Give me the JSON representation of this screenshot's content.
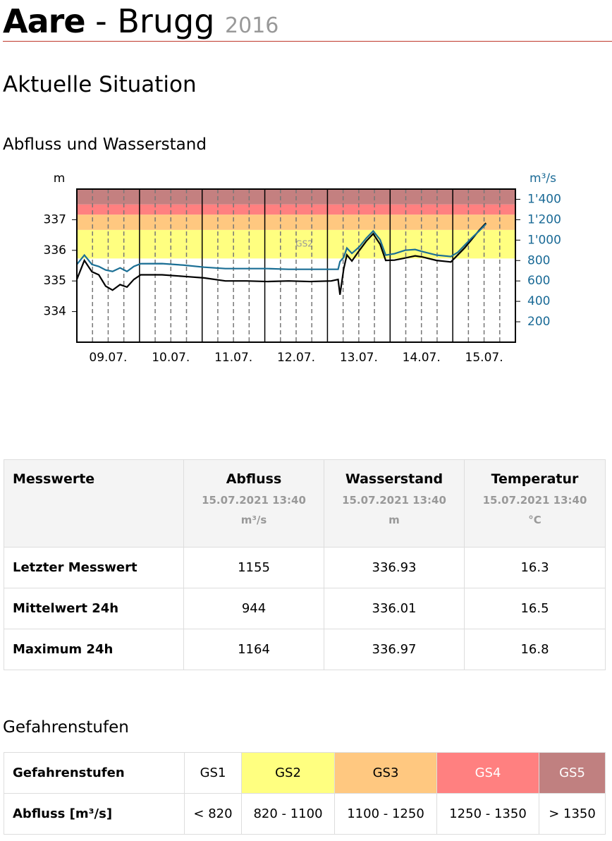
{
  "header": {
    "river": "Aare",
    "place": "- Brugg",
    "year": "2016"
  },
  "section_title": "Aktuelle Situation",
  "chart_heading": "Abfluss und Wasserstand",
  "chart_data": {
    "type": "line",
    "ylabel": "m",
    "y2label": "m³/s",
    "y2color": "#1a6a96",
    "categories": [
      "09.07.",
      "10.07.",
      "11.07.",
      "12.07.",
      "13.07.",
      "14.07.",
      "15.07."
    ],
    "xlim": [
      0,
      7
    ],
    "xticks": [
      1,
      2,
      3,
      4,
      5,
      6
    ],
    "minor_xticks": [
      0.25,
      0.5,
      0.75,
      1.25,
      1.5,
      1.75,
      2.25,
      2.5,
      2.75,
      3.25,
      3.5,
      3.75,
      4.25,
      4.5,
      4.75,
      5.25,
      5.5,
      5.75,
      6.25,
      6.5,
      6.75
    ],
    "ylim": [
      333,
      338
    ],
    "yticks": [
      334,
      335,
      336,
      337
    ],
    "y2lim": [
      0,
      1500
    ],
    "y2ticks": [
      200,
      400,
      600,
      800,
      {
        "value": 1000,
        "label": "1'000"
      },
      {
        "value": 1200,
        "label": "1'200"
      },
      {
        "value": 1400,
        "label": "1'400"
      }
    ],
    "bands": [
      {
        "from": 820,
        "color": "#ffff80",
        "label": "GS2"
      },
      {
        "from": 1100,
        "color": "#ffc880"
      },
      {
        "from": 1250,
        "color": "#ff8080"
      },
      {
        "from": 1350,
        "color": "#c48080"
      }
    ],
    "x": [
      0,
      0.12,
      0.24,
      0.35,
      0.46,
      0.57,
      0.69,
      0.8,
      0.91,
      1.02,
      1.36,
      1.7,
      2.03,
      2.37,
      2.71,
      3.04,
      3.38,
      3.72,
      4.06,
      4.17,
      4.2,
      4.26,
      4.31,
      4.39,
      4.51,
      4.62,
      4.73,
      4.84,
      4.93,
      5.07,
      5.24,
      5.4,
      5.52,
      5.74,
      5.97,
      6.08,
      6.19,
      6.3,
      6.42,
      6.53
    ],
    "series": [
      {
        "color": "#000000",
        "axis": "y",
        "values": [
          335.05,
          335.67,
          335.3,
          335.2,
          334.83,
          334.7,
          334.88,
          334.8,
          335.05,
          335.2,
          335.2,
          335.15,
          335.1,
          335.0,
          335.0,
          334.98,
          335.0,
          334.98,
          335.0,
          335.05,
          334.55,
          335.4,
          335.85,
          335.65,
          336.0,
          336.3,
          336.54,
          336.2,
          335.67,
          335.68,
          335.75,
          335.82,
          335.78,
          335.67,
          335.62,
          335.85,
          336.08,
          336.35,
          336.65,
          336.89
        ]
      },
      {
        "color": "#1b6f95",
        "axis": "y2",
        "values": [
          762,
          853,
          762,
          742,
          707,
          693,
          728,
          693,
          742,
          769,
          770,
          755,
          735,
          721,
          721,
          721,
          714,
          714,
          714,
          714,
          790,
          832,
          922,
          870,
          935,
          1019,
          1089,
          1005,
          853,
          867,
          901,
          908,
          887,
          853,
          839,
          880,
          950,
          1019,
          1089,
          1158
        ]
      }
    ]
  },
  "measurements": {
    "corner": "Messwerte",
    "columns": [
      {
        "title": "Abfluss",
        "date": "15.07.2021 13:40",
        "unit": "m³/s"
      },
      {
        "title": "Wasserstand",
        "date": "15.07.2021 13:40",
        "unit": "m"
      },
      {
        "title": "Temperatur",
        "date": "15.07.2021 13:40",
        "unit": "°C"
      }
    ],
    "rows": [
      {
        "label": "Letzter Messwert",
        "cells": [
          1155,
          336.93,
          16.3
        ]
      },
      {
        "label": "Mittelwert 24h",
        "cells": [
          944,
          336.01,
          16.5
        ]
      },
      {
        "label": "Maximum 24h",
        "cells": [
          1164,
          336.97,
          16.8
        ]
      }
    ]
  },
  "hazard_heading": "Gefahrenstufen",
  "hazard_table": {
    "header": "Gefahrenstufen",
    "row_label": "Abfluss [m³/s]",
    "levels": [
      {
        "name": "GS1",
        "range": "< 820",
        "color": "#ffffff"
      },
      {
        "name": "GS2",
        "range": "820 - 1100",
        "color": "#ffff80"
      },
      {
        "name": "GS3",
        "range": "1100 - 1250",
        "color": "#ffc880"
      },
      {
        "name": "GS4",
        "range": "1250 - 1350",
        "color": "#ff8080"
      },
      {
        "name": "GS5",
        "range": "> 1350",
        "color": "#c08080"
      }
    ]
  }
}
